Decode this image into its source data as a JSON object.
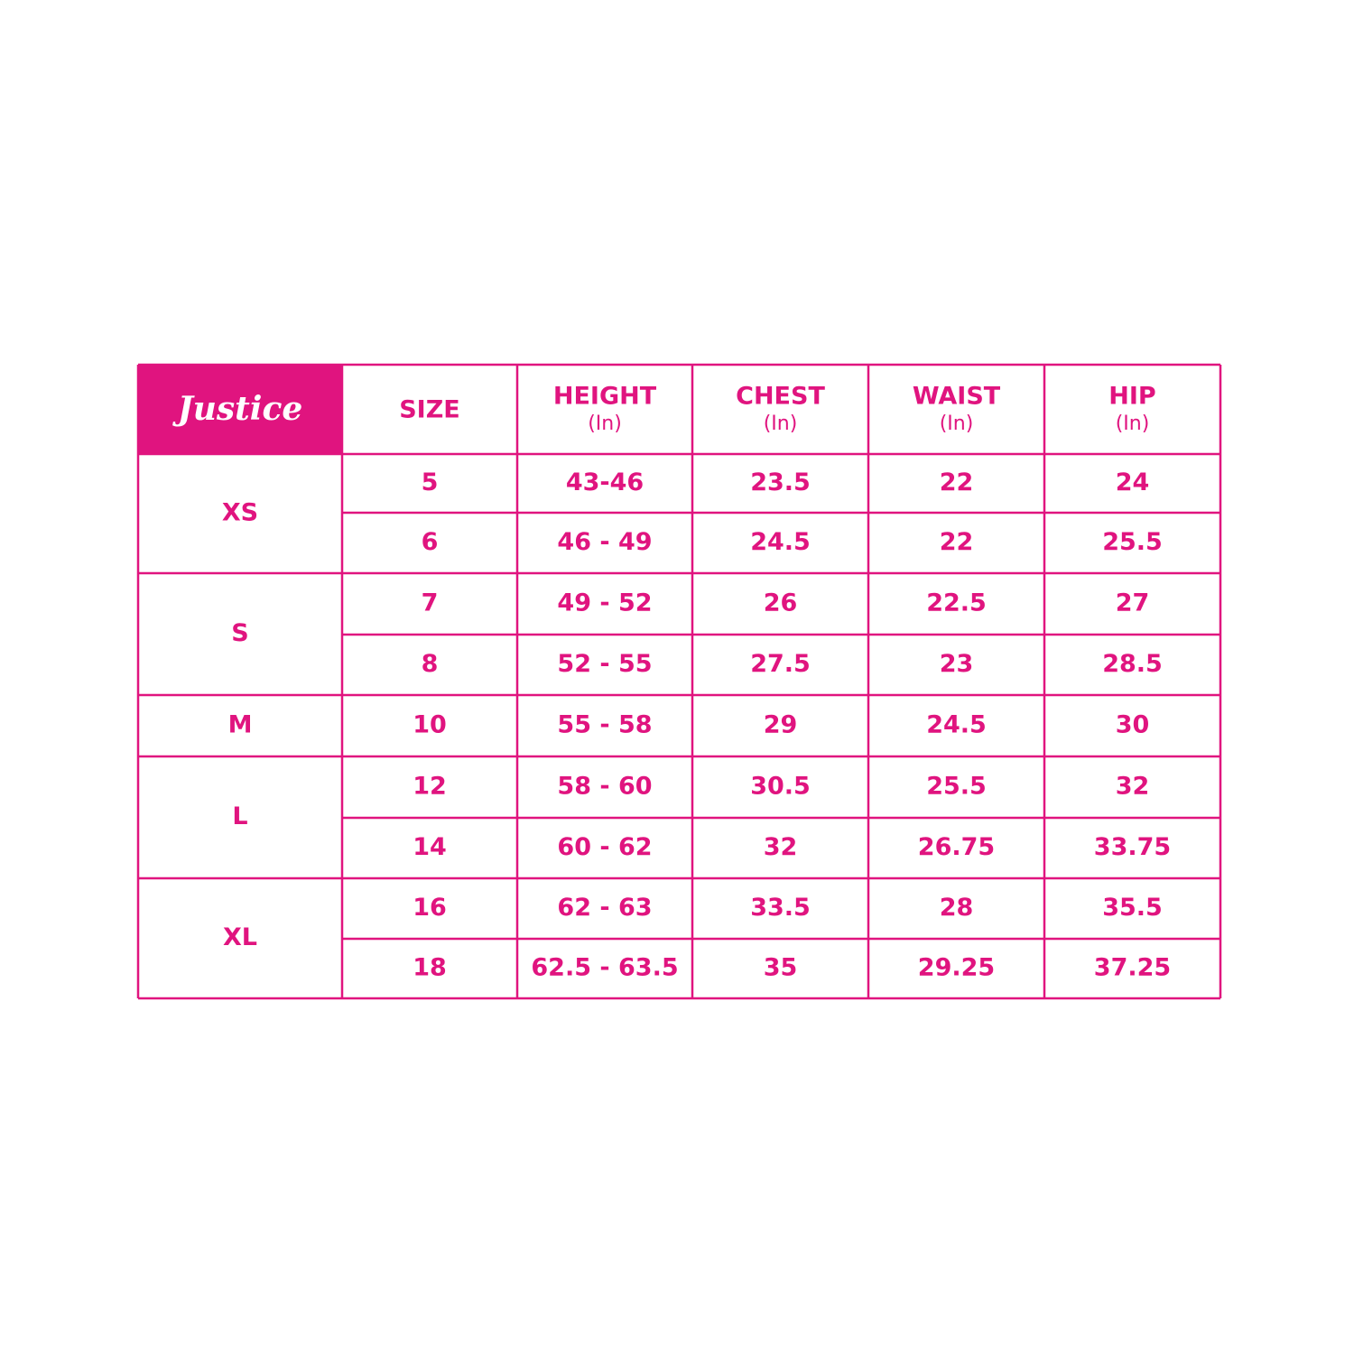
{
  "header": {
    "logo": "Justice",
    "columns": [
      {
        "title": "SIZE"
      },
      {
        "title": "HEIGHT",
        "unit": "(In)"
      },
      {
        "title": "CHEST",
        "unit": "(In)"
      },
      {
        "title": "WAIST",
        "unit": "(In)"
      },
      {
        "title": "HIP",
        "unit": "(In)"
      }
    ]
  },
  "groups": [
    {
      "label": "XS",
      "rows": [
        [
          "5",
          "43-46",
          "23.5",
          "22",
          "24"
        ],
        [
          "6",
          "46 - 49",
          "24.5",
          "22",
          "25.5"
        ]
      ]
    },
    {
      "label": "S",
      "rows": [
        [
          "7",
          "49 - 52",
          "26",
          "22.5",
          "27"
        ],
        [
          "8",
          "52 - 55",
          "27.5",
          "23",
          "28.5"
        ]
      ]
    },
    {
      "label": "M",
      "rows": [
        [
          "10",
          "55 - 58",
          "29",
          "24.5",
          "30"
        ]
      ]
    },
    {
      "label": "L",
      "rows": [
        [
          "12",
          "58 - 60",
          "30.5",
          "25.5",
          "32"
        ],
        [
          "14",
          "60 - 62",
          "32",
          "26.75",
          "33.75"
        ]
      ]
    },
    {
      "label": "XL",
      "rows": [
        [
          "16",
          "62 - 63",
          "33.5",
          "28",
          "35.5"
        ],
        [
          "18",
          "62.5 - 63.5",
          "35",
          "29.25",
          "37.25"
        ]
      ]
    }
  ]
}
